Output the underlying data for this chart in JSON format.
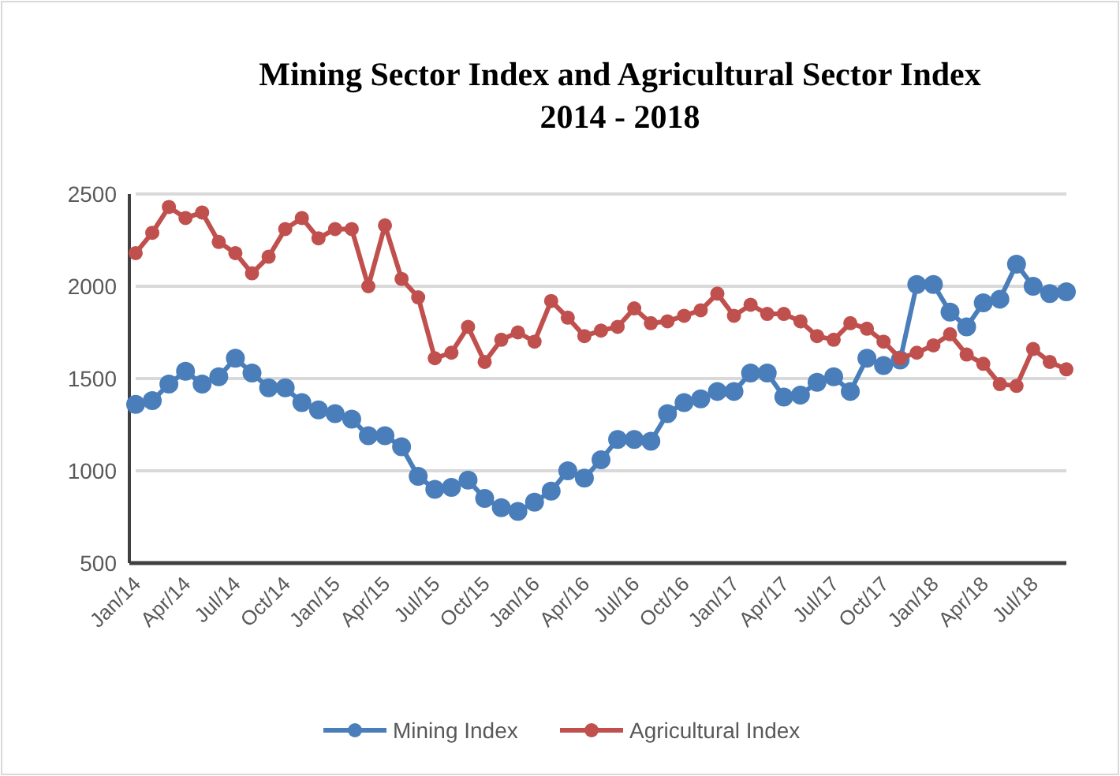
{
  "chart_data": {
    "type": "line",
    "title": "Mining Sector Index and Agricultural Sector Index\n2014 - 2018",
    "categories": [
      "Jan/14",
      null,
      null,
      "Apr/14",
      null,
      null,
      "Jul/14",
      null,
      null,
      "Oct/14",
      null,
      null,
      "Jan/15",
      null,
      null,
      "Apr/15",
      null,
      null,
      "Jul/15",
      null,
      null,
      "Oct/15",
      null,
      null,
      "Jan/16",
      null,
      null,
      "Apr/16",
      null,
      null,
      "Jul/16",
      null,
      null,
      "Oct/16",
      null,
      null,
      "Jan/17",
      null,
      null,
      "Apr/17",
      null,
      null,
      "Jul/17",
      null,
      null,
      "Oct/17",
      null,
      null,
      "Jan/18",
      null,
      null,
      "Apr/18",
      null,
      null,
      "Jul/18",
      null,
      null
    ],
    "series": [
      {
        "name": "Mining Index",
        "color": "#4a7ebb",
        "values": [
          1360,
          1380,
          1470,
          1540,
          1470,
          1510,
          1610,
          1530,
          1450,
          1450,
          1370,
          1330,
          1310,
          1280,
          1190,
          1190,
          1130,
          970,
          900,
          910,
          950,
          850,
          800,
          780,
          830,
          890,
          1000,
          960,
          1060,
          1170,
          1170,
          1160,
          1310,
          1370,
          1390,
          1430,
          1430,
          1530,
          1530,
          1400,
          1410,
          1480,
          1510,
          1430,
          1610,
          1570,
          1600,
          2010,
          2010,
          1860,
          1780,
          1910,
          1930,
          2120,
          2000,
          1960,
          1970
        ]
      },
      {
        "name": "Agricultural Index",
        "color": "#c0504d",
        "values": [
          2180,
          2290,
          2430,
          2370,
          2400,
          2240,
          2180,
          2070,
          2160,
          2310,
          2370,
          2260,
          2310,
          2310,
          2000,
          2330,
          2040,
          1940,
          1610,
          1640,
          1780,
          1590,
          1710,
          1750,
          1700,
          1920,
          1830,
          1730,
          1760,
          1780,
          1880,
          1800,
          1810,
          1840,
          1870,
          1960,
          1840,
          1900,
          1850,
          1850,
          1810,
          1730,
          1710,
          1800,
          1770,
          1700,
          1610,
          1640,
          1680,
          1740,
          1630,
          1580,
          1470,
          1460,
          1660,
          1590,
          1550
        ]
      }
    ],
    "ylim": [
      500,
      2500
    ],
    "yticks": [
      500,
      1000,
      1500,
      2000,
      2500
    ],
    "grid": "y",
    "legend": "bottom",
    "marker": "circle",
    "line_style": "solid"
  }
}
